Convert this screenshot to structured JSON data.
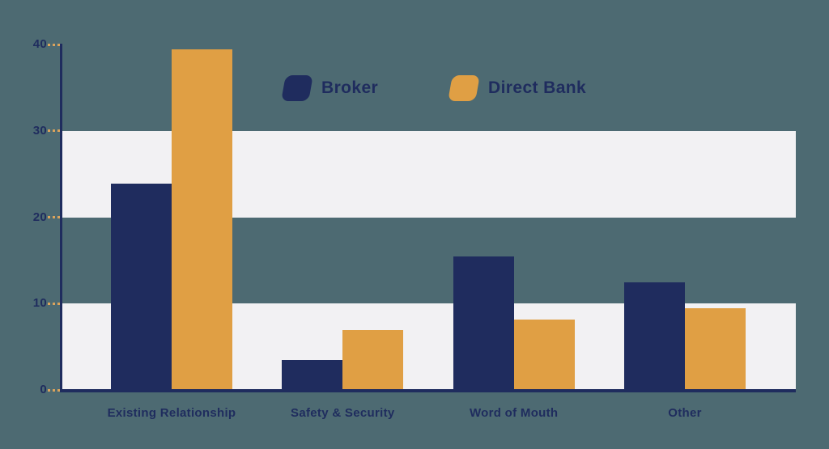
{
  "colors": {
    "background": "#4d6a72",
    "shaded_band": "#f2f1f3",
    "axis": "#1f2c5e",
    "text": "#1f2c5e",
    "tick_dash": "#dba35c",
    "broker": "#1f2c5e",
    "direct_bank": "#e09f44"
  },
  "chart_data": {
    "type": "bar",
    "title": "",
    "xlabel": "",
    "ylabel": "",
    "categories": [
      "Existing Relationship",
      "Safety & Security",
      "Word of Mouth",
      "Other"
    ],
    "series": [
      {
        "name": "Broker",
        "color": "#1f2c5e",
        "values": [
          23.8,
          3.4,
          15.4,
          12.4
        ]
      },
      {
        "name": "Direct Bank",
        "color": "#e09f44",
        "values": [
          39.3,
          6.8,
          8.1,
          9.4
        ]
      }
    ],
    "yticks": [
      "0",
      "10",
      "20",
      "30",
      "40"
    ],
    "ytick_values": [
      0,
      10,
      20,
      30,
      40
    ],
    "ylim": [
      0,
      40
    ],
    "shaded_bands": [
      [
        20,
        30
      ],
      [
        0,
        10
      ]
    ],
    "legend_position": "top-center",
    "grid": "off"
  }
}
